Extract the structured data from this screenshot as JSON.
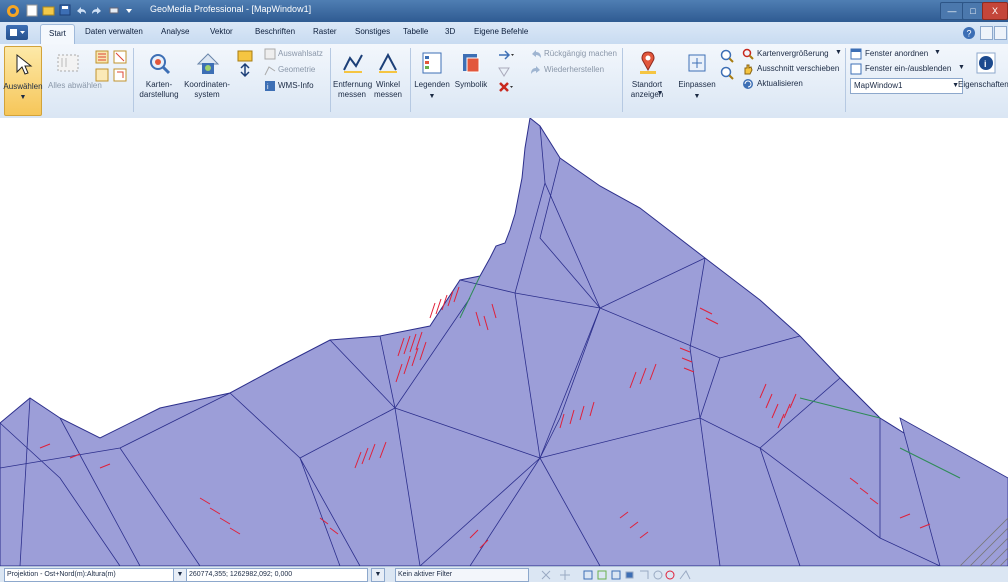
{
  "titlebar": {
    "title": "GeoMedia Professional - [MapWindow1]",
    "minimize": "—",
    "maximize": "□",
    "close": "X"
  },
  "tabs": [
    "Start",
    "Daten verwalten",
    "Analyse",
    "Vektor",
    "Beschriften",
    "Raster",
    "Sonstiges",
    "Tabelle",
    "3D",
    "Eigene Befehle"
  ],
  "ribbon": {
    "select_label": "Auswählen",
    "deselect_label": "Alles abwählen",
    "map_display_label": "Karten-\ndarstellung",
    "coord_system_label": "Koordinaten-\nsystem",
    "auswahlsatz": "Auswahlsatz",
    "geometrie": "Geometrie",
    "wms_info": "WMS-Info",
    "distance_label": "Entfernung\nmessen",
    "angle_label": "Winkel\nmessen",
    "legend_label": "Legenden",
    "symbology_label": "Symbolik",
    "undo": "Rückgängig machen",
    "redo": "Wiederherstellen",
    "location_label": "Standort\nanzeigen",
    "fit_label": "Einpassen",
    "zoom": "Kartenvergrößerung",
    "pan": "Ausschnitt verschieben",
    "refresh": "Aktualisieren",
    "arrange": "Fenster anordnen",
    "show_hide": "Fenster ein-/ausblenden",
    "window_select": "MapWindow1",
    "properties_label": "Eigenschaften"
  },
  "status": {
    "projection": "Projektion - Ost+Nord(m):Altura(m)",
    "coords": "260774,355; 1262982,092; 0,000",
    "filter": "Kein aktiver Filter"
  },
  "colors": {
    "polygon_fill": "#9c9ed8",
    "polygon_edge": "#2c2f8c",
    "markers": "#e0203a",
    "green_edge": "#2e8b57"
  }
}
